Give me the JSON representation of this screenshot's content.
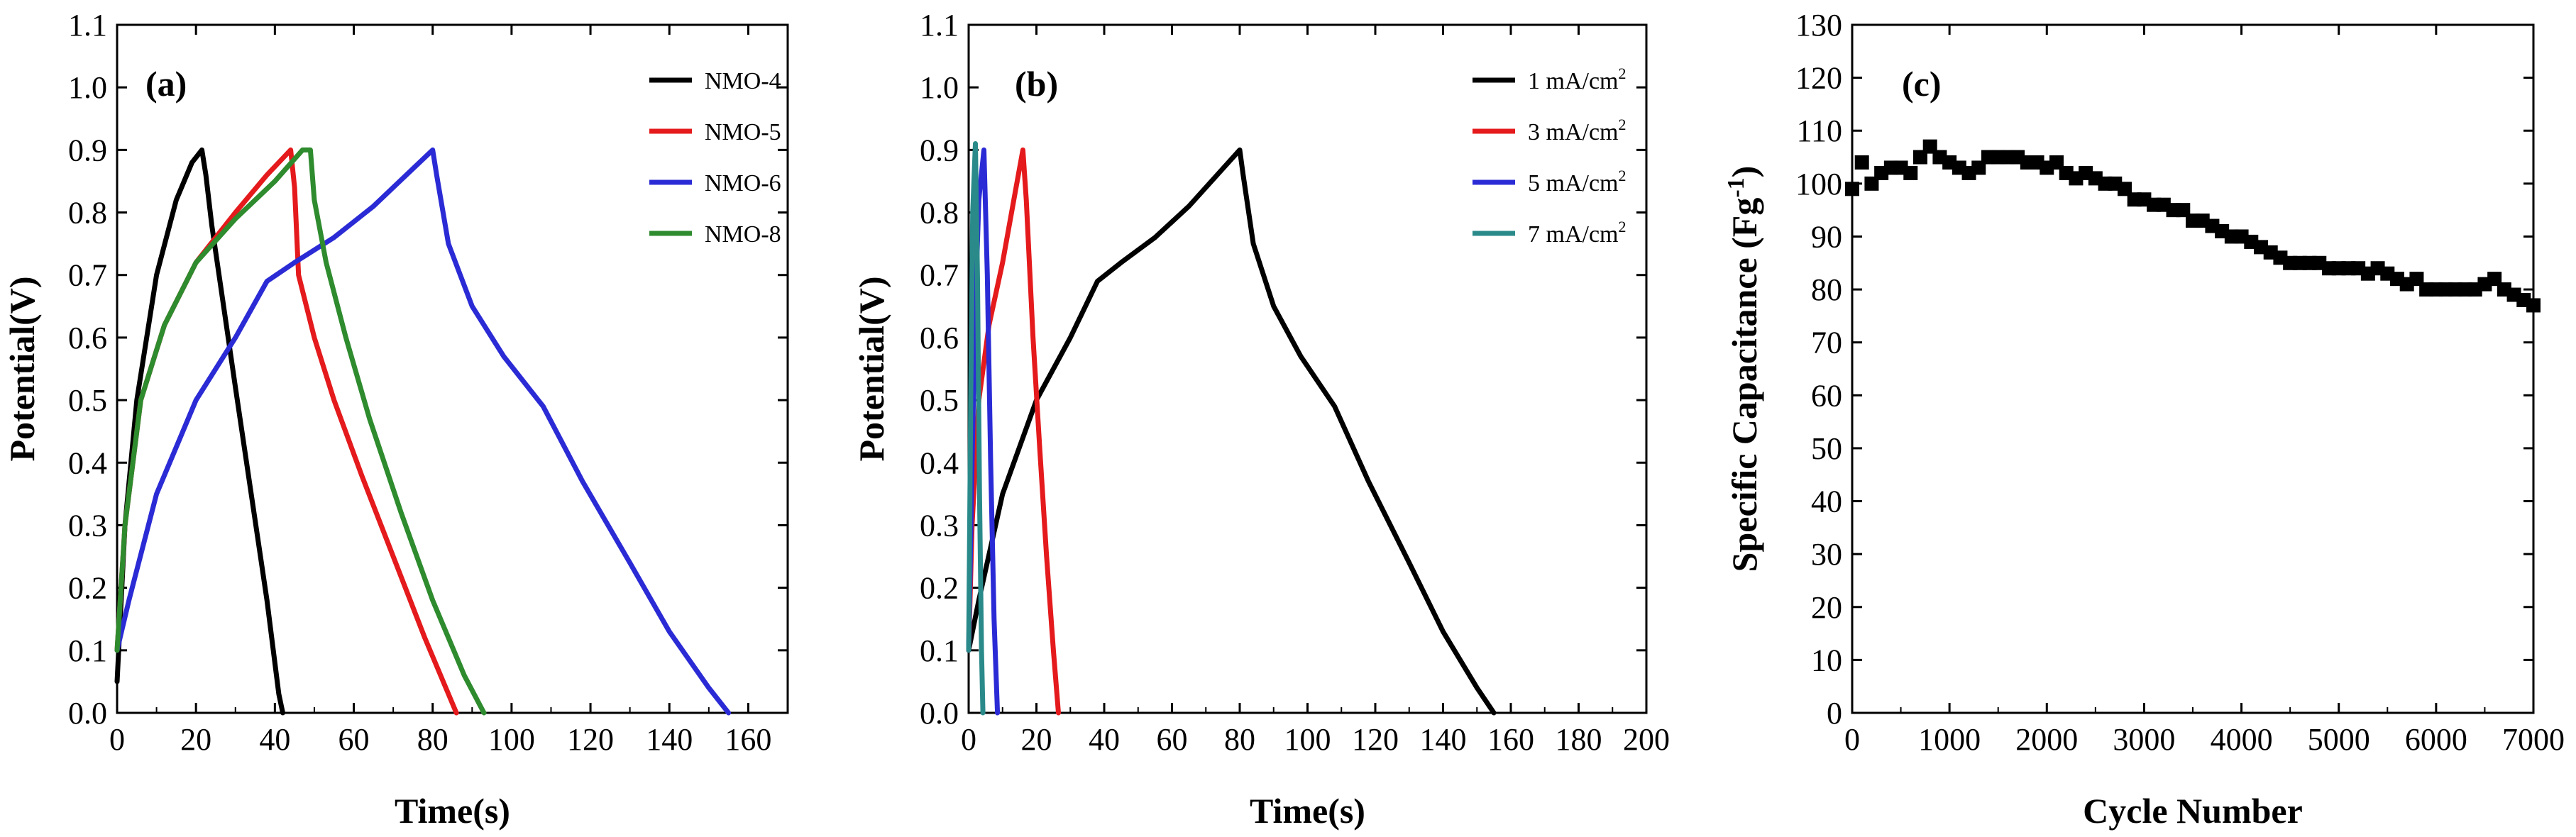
{
  "chart_data": [
    {
      "type": "line",
      "panel_label": "(a)",
      "xlabel": "Time(s)",
      "ylabel": "Potential(V)",
      "xlim": [
        0,
        170
      ],
      "ylim": [
        0,
        1.1
      ],
      "xticks": [
        0,
        20,
        40,
        60,
        80,
        100,
        120,
        140,
        160
      ],
      "yticks": [
        0.0,
        0.1,
        0.2,
        0.3,
        0.4,
        0.5,
        0.6,
        0.7,
        0.8,
        0.9,
        1.0,
        1.1
      ],
      "legend_position": "top-right",
      "series": [
        {
          "name": "NMO-4",
          "color": "#000000",
          "points": [
            [
              0,
              0.05
            ],
            [
              2,
              0.3
            ],
            [
              5,
              0.5
            ],
            [
              10,
              0.7
            ],
            [
              15,
              0.82
            ],
            [
              19,
              0.88
            ],
            [
              21.5,
              0.9
            ],
            [
              22.5,
              0.86
            ],
            [
              24,
              0.78
            ],
            [
              27,
              0.65
            ],
            [
              30,
              0.52
            ],
            [
              34,
              0.35
            ],
            [
              38,
              0.18
            ],
            [
              41,
              0.03
            ],
            [
              42,
              0.0
            ]
          ]
        },
        {
          "name": "NMO-5",
          "color": "#e41a1c",
          "points": [
            [
              0,
              0.1
            ],
            [
              2,
              0.3
            ],
            [
              6,
              0.5
            ],
            [
              12,
              0.62
            ],
            [
              20,
              0.72
            ],
            [
              30,
              0.8
            ],
            [
              38,
              0.86
            ],
            [
              44,
              0.9
            ],
            [
              45,
              0.84
            ],
            [
              46,
              0.7
            ],
            [
              50,
              0.6
            ],
            [
              55,
              0.5
            ],
            [
              62,
              0.38
            ],
            [
              70,
              0.25
            ],
            [
              78,
              0.12
            ],
            [
              86,
              0.0
            ]
          ]
        },
        {
          "name": "NMO-6",
          "color": "#2b2bd6",
          "points": [
            [
              0,
              0.1
            ],
            [
              3,
              0.18
            ],
            [
              10,
              0.35
            ],
            [
              20,
              0.5
            ],
            [
              30,
              0.6
            ],
            [
              38,
              0.69
            ],
            [
              45,
              0.72
            ],
            [
              55,
              0.76
            ],
            [
              65,
              0.81
            ],
            [
              75,
              0.87
            ],
            [
              80,
              0.9
            ],
            [
              81,
              0.86
            ],
            [
              84,
              0.75
            ],
            [
              90,
              0.65
            ],
            [
              98,
              0.57
            ],
            [
              108,
              0.49
            ],
            [
              118,
              0.37
            ],
            [
              130,
              0.24
            ],
            [
              140,
              0.13
            ],
            [
              150,
              0.04
            ],
            [
              155,
              0.0
            ]
          ]
        },
        {
          "name": "NMO-8",
          "color": "#2e8b2e",
          "points": [
            [
              0,
              0.1
            ],
            [
              2,
              0.3
            ],
            [
              6,
              0.5
            ],
            [
              12,
              0.62
            ],
            [
              20,
              0.72
            ],
            [
              30,
              0.79
            ],
            [
              40,
              0.85
            ],
            [
              47,
              0.9
            ],
            [
              49,
              0.9
            ],
            [
              50,
              0.82
            ],
            [
              53,
              0.72
            ],
            [
              58,
              0.6
            ],
            [
              64,
              0.47
            ],
            [
              72,
              0.32
            ],
            [
              80,
              0.18
            ],
            [
              88,
              0.06
            ],
            [
              93,
              0.0
            ]
          ]
        }
      ]
    },
    {
      "type": "line",
      "panel_label": "(b)",
      "xlabel": "Time(s)",
      "ylabel": "Potential(V)",
      "xlim": [
        0,
        200
      ],
      "ylim": [
        0,
        1.1
      ],
      "xticks": [
        0,
        20,
        40,
        60,
        80,
        100,
        120,
        140,
        160,
        180,
        200
      ],
      "yticks": [
        0.0,
        0.1,
        0.2,
        0.3,
        0.4,
        0.5,
        0.6,
        0.7,
        0.8,
        0.9,
        1.0,
        1.1
      ],
      "legend_position": "top-right",
      "series": [
        {
          "name": "1 mA/cm",
          "superscript": "2",
          "color": "#000000",
          "points": [
            [
              0,
              0.1
            ],
            [
              3,
              0.18
            ],
            [
              10,
              0.35
            ],
            [
              20,
              0.5
            ],
            [
              30,
              0.6
            ],
            [
              38,
              0.69
            ],
            [
              45,
              0.72
            ],
            [
              55,
              0.76
            ],
            [
              65,
              0.81
            ],
            [
              75,
              0.87
            ],
            [
              80,
              0.9
            ],
            [
              81,
              0.86
            ],
            [
              84,
              0.75
            ],
            [
              90,
              0.65
            ],
            [
              98,
              0.57
            ],
            [
              108,
              0.49
            ],
            [
              118,
              0.37
            ],
            [
              130,
              0.24
            ],
            [
              140,
              0.13
            ],
            [
              150,
              0.04
            ],
            [
              155,
              0.0
            ]
          ]
        },
        {
          "name": "3 mA/cm",
          "superscript": "2",
          "color": "#e41a1c",
          "points": [
            [
              0,
              0.1
            ],
            [
              1,
              0.3
            ],
            [
              3,
              0.5
            ],
            [
              6,
              0.62
            ],
            [
              10,
              0.72
            ],
            [
              14,
              0.84
            ],
            [
              16,
              0.9
            ],
            [
              17,
              0.82
            ],
            [
              19,
              0.6
            ],
            [
              21,
              0.42
            ],
            [
              23,
              0.25
            ],
            [
              25,
              0.1
            ],
            [
              26.5,
              0.0
            ]
          ]
        },
        {
          "name": "5 mA/cm",
          "superscript": "2",
          "color": "#2b2bd6",
          "points": [
            [
              0,
              0.1
            ],
            [
              1,
              0.4
            ],
            [
              2,
              0.65
            ],
            [
              3,
              0.82
            ],
            [
              4.5,
              0.9
            ],
            [
              5.5,
              0.7
            ],
            [
              6.5,
              0.4
            ],
            [
              7.5,
              0.15
            ],
            [
              8.5,
              0.0
            ]
          ]
        },
        {
          "name": "7 mA/cm",
          "superscript": "2",
          "color": "#2a8a8a",
          "points": [
            [
              0,
              0.1
            ],
            [
              0.6,
              0.5
            ],
            [
              1.2,
              0.8
            ],
            [
              2,
              0.91
            ],
            [
              2.6,
              0.7
            ],
            [
              3.2,
              0.35
            ],
            [
              3.8,
              0.1
            ],
            [
              4.2,
              0.0
            ]
          ]
        }
      ]
    },
    {
      "type": "scatter",
      "panel_label": "(c)",
      "xlabel": "Cycle Number",
      "ylabel": "Specific Capacitance (Fg",
      "ylabel_superscript": "-1",
      "ylabel_suffix": ")",
      "xlim": [
        0,
        7000
      ],
      "ylim": [
        0,
        130
      ],
      "xticks": [
        0,
        1000,
        2000,
        3000,
        4000,
        5000,
        6000,
        7000
      ],
      "yticks": [
        0,
        10,
        20,
        30,
        40,
        50,
        60,
        70,
        80,
        90,
        100,
        110,
        120,
        130
      ],
      "series": [
        {
          "name": "capacitance",
          "color": "#000000",
          "points": [
            [
              0,
              99
            ],
            [
              100,
              104
            ],
            [
              200,
              100
            ],
            [
              300,
              102
            ],
            [
              400,
              103
            ],
            [
              500,
              103
            ],
            [
              600,
              102
            ],
            [
              700,
              105
            ],
            [
              800,
              107
            ],
            [
              900,
              105
            ],
            [
              1000,
              104
            ],
            [
              1100,
              103
            ],
            [
              1200,
              102
            ],
            [
              1300,
              103
            ],
            [
              1400,
              105
            ],
            [
              1500,
              105
            ],
            [
              1600,
              105
            ],
            [
              1700,
              105
            ],
            [
              1800,
              104
            ],
            [
              1900,
              104
            ],
            [
              2000,
              103
            ],
            [
              2100,
              104
            ],
            [
              2200,
              102
            ],
            [
              2300,
              101
            ],
            [
              2400,
              102
            ],
            [
              2500,
              101
            ],
            [
              2600,
              100
            ],
            [
              2700,
              100
            ],
            [
              2800,
              99
            ],
            [
              2900,
              97
            ],
            [
              3000,
              97
            ],
            [
              3100,
              96
            ],
            [
              3200,
              96
            ],
            [
              3300,
              95
            ],
            [
              3400,
              95
            ],
            [
              3500,
              93
            ],
            [
              3600,
              93
            ],
            [
              3700,
              92
            ],
            [
              3800,
              91
            ],
            [
              3900,
              90
            ],
            [
              4000,
              90
            ],
            [
              4100,
              89
            ],
            [
              4200,
              88
            ],
            [
              4300,
              87
            ],
            [
              4400,
              86
            ],
            [
              4500,
              85
            ],
            [
              4600,
              85
            ],
            [
              4700,
              85
            ],
            [
              4800,
              85
            ],
            [
              4900,
              84
            ],
            [
              5000,
              84
            ],
            [
              5100,
              84
            ],
            [
              5200,
              84
            ],
            [
              5300,
              83
            ],
            [
              5400,
              84
            ],
            [
              5500,
              83
            ],
            [
              5600,
              82
            ],
            [
              5700,
              81
            ],
            [
              5800,
              82
            ],
            [
              5900,
              80
            ],
            [
              6000,
              80
            ],
            [
              6100,
              80
            ],
            [
              6200,
              80
            ],
            [
              6300,
              80
            ],
            [
              6400,
              80
            ],
            [
              6500,
              81
            ],
            [
              6600,
              82
            ],
            [
              6700,
              80
            ],
            [
              6800,
              79
            ],
            [
              6900,
              78
            ],
            [
              7000,
              77
            ]
          ]
        }
      ]
    }
  ]
}
